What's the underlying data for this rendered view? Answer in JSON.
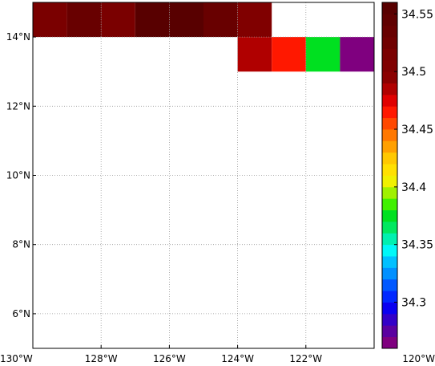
{
  "chart_data": {
    "type": "heatmap",
    "title": "",
    "xlabel": "",
    "ylabel": "",
    "xlim": [
      -130,
      -120
    ],
    "ylim": [
      5,
      15
    ],
    "grid": true,
    "x_ticks": [
      -130,
      -128,
      -126,
      -124,
      -122,
      -120
    ],
    "x_tick_labels": [
      "130°W",
      "128°W",
      "126°W",
      "124°W",
      "122°W",
      "120°W"
    ],
    "y_ticks": [
      6,
      8,
      10,
      12,
      14
    ],
    "y_tick_labels": [
      "6°N",
      "8°N",
      "10°N",
      "12°N",
      "14°N"
    ],
    "cell_size_deg": 1,
    "cells": [
      {
        "lon": -130,
        "lat": 14,
        "value": 34.515
      },
      {
        "lon": -129,
        "lat": 14,
        "value": 34.535
      },
      {
        "lon": -128,
        "lat": 14,
        "value": 34.515
      },
      {
        "lon": -127,
        "lat": 14,
        "value": 34.555
      },
      {
        "lon": -126,
        "lat": 14,
        "value": 34.555
      },
      {
        "lon": -125,
        "lat": 14,
        "value": 34.535
      },
      {
        "lon": -124,
        "lat": 14,
        "value": 34.505
      },
      {
        "lon": -124,
        "lat": 13,
        "value": 34.485
      },
      {
        "lon": -123,
        "lat": 13,
        "value": 34.465
      },
      {
        "lon": -122,
        "lat": 13,
        "value": 34.375
      },
      {
        "lon": -121,
        "lat": 13,
        "value": 34.265
      }
    ],
    "colorbar": {
      "min": 34.26,
      "max": 34.56,
      "step": 0.01,
      "tick_values": [
        34.3,
        34.35,
        34.4,
        34.45,
        34.5,
        34.55
      ],
      "tick_labels": [
        "34.3",
        "34.35",
        "34.4",
        "34.45",
        "34.5",
        "34.55"
      ],
      "colors": [
        "#7f007f",
        "#5b00a0",
        "#3300c8",
        "#0a00f0",
        "#0028ff",
        "#0058ff",
        "#0090ff",
        "#00c0ff",
        "#00f8f8",
        "#00f0b0",
        "#00e860",
        "#00e020",
        "#40f000",
        "#a0f000",
        "#f0f000",
        "#ffe000",
        "#ffc800",
        "#ffa000",
        "#ff7800",
        "#ff4800",
        "#ff1800",
        "#e00000",
        "#b00000",
        "#8b0000",
        "#800000",
        "#7a0000",
        "#700000",
        "#680000",
        "#600000",
        "#580000"
      ]
    }
  }
}
